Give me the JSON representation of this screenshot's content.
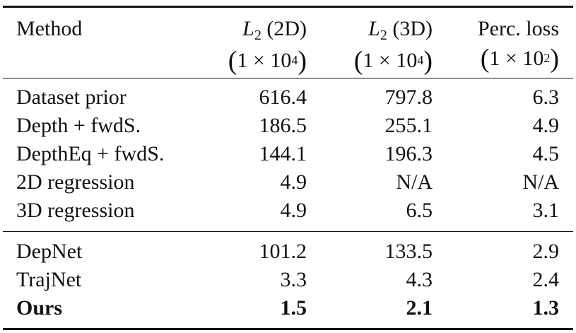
{
  "table": {
    "headers": {
      "method": "Method",
      "col1": {
        "label": "L",
        "subscript": "2",
        "suffix": "(2D)",
        "scale_base": "1 × 10",
        "scale_exp": "4"
      },
      "col2": {
        "label": "L",
        "subscript": "2",
        "suffix": "(3D)",
        "scale_base": "1 × 10",
        "scale_exp": "4"
      },
      "col3": {
        "label": "Perc. loss",
        "scale_base": "1 × 10",
        "scale_exp": "2"
      }
    },
    "group1": [
      {
        "method": "Dataset prior",
        "l2_2d": "616.4",
        "l2_3d": "797.8",
        "perc": "6.3"
      },
      {
        "method": "Depth + fwdS.",
        "l2_2d": "186.5",
        "l2_3d": "255.1",
        "perc": "4.9"
      },
      {
        "method": "DepthEq + fwdS.",
        "l2_2d": "144.1",
        "l2_3d": "196.3",
        "perc": "4.5"
      },
      {
        "method": "2D regression",
        "l2_2d": "4.9",
        "l2_3d": "N/A",
        "perc": "N/A"
      },
      {
        "method": "3D regression",
        "l2_2d": "4.9",
        "l2_3d": "6.5",
        "perc": "3.1"
      }
    ],
    "group2": [
      {
        "method": "DepNet",
        "l2_2d": "101.2",
        "l2_3d": "133.5",
        "perc": "2.9"
      },
      {
        "method": "TrajNet",
        "l2_2d": "3.3",
        "l2_3d": "4.3",
        "perc": "2.4"
      },
      {
        "method": "Ours",
        "l2_2d": "1.5",
        "l2_3d": "2.1",
        "perc": "1.3"
      }
    ]
  }
}
